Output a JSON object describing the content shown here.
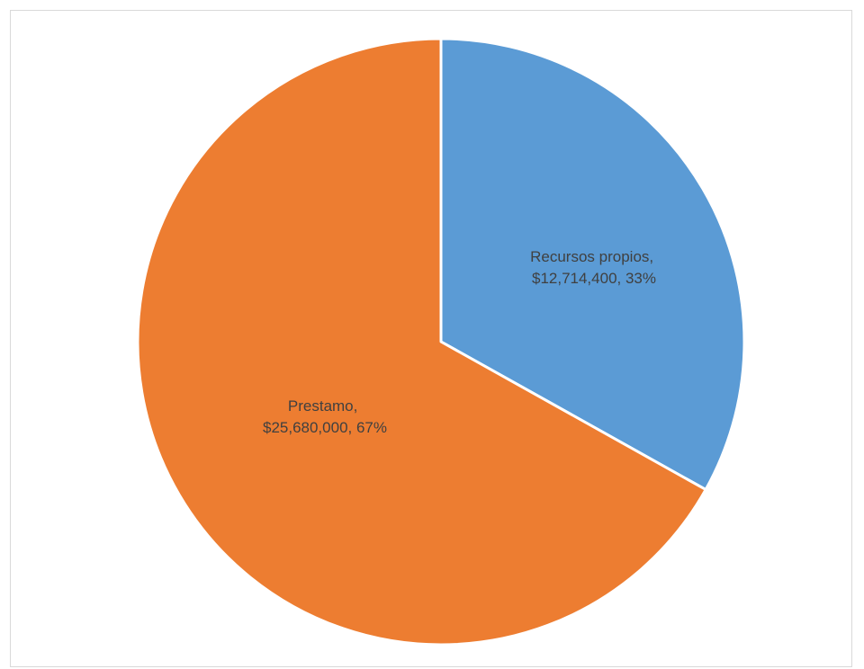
{
  "chart_data": {
    "type": "pie",
    "title": "",
    "categories": [
      "Recursos propios",
      "Prestamo"
    ],
    "values": [
      12714400,
      25680000
    ],
    "percentages": [
      33,
      67
    ],
    "colors": [
      "#5b9bd5",
      "#ed7d31"
    ],
    "data_labels": [
      {
        "line1": "Recursos propios,",
        "line2": "$12,714,400, 33%"
      },
      {
        "line1": "Prestamo,",
        "line2": "$25,680,000, 67%"
      }
    ],
    "legend": "none",
    "start": "12 o'clock",
    "direction": "clockwise"
  }
}
